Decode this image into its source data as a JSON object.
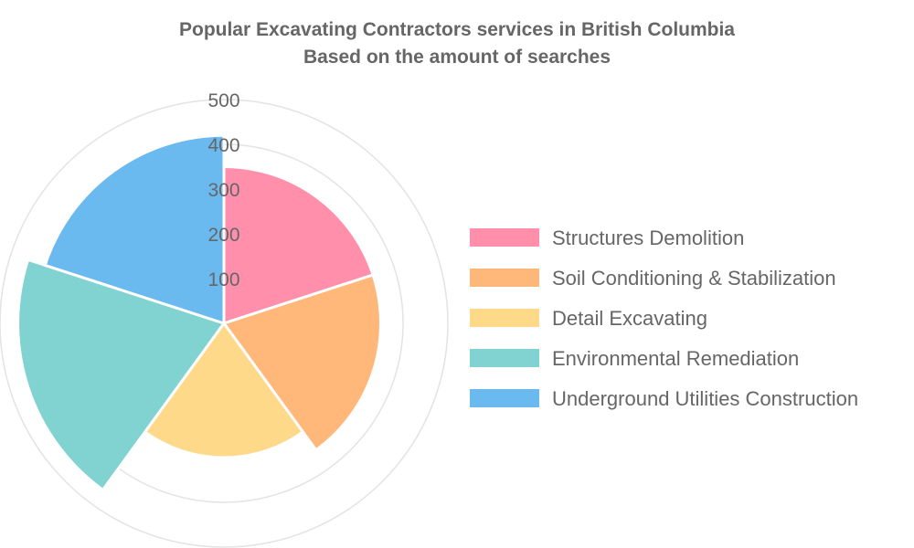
{
  "chart_data": {
    "type": "polar-area",
    "title": "Popular Excavating Contractors services in British Columbia",
    "subtitle": "Based on the amount of searches",
    "categories": [
      "Structures Demolition",
      "Soil Conditioning & Stabilization",
      "Detail Excavating",
      "Environmental Remediation",
      "Underground Utilities Construction"
    ],
    "values": [
      350,
      350,
      300,
      460,
      420
    ],
    "colors": [
      "#ff8fab",
      "#ffb87a",
      "#ffd98a",
      "#80d3d1",
      "#6ab9ef"
    ],
    "r_ticks": [
      100,
      200,
      300,
      400,
      500
    ],
    "r_tick_labels": [
      "100",
      "200",
      "300",
      "400",
      "500"
    ],
    "rlim": [
      0,
      500
    ],
    "grid": true,
    "legend_position": "right"
  }
}
